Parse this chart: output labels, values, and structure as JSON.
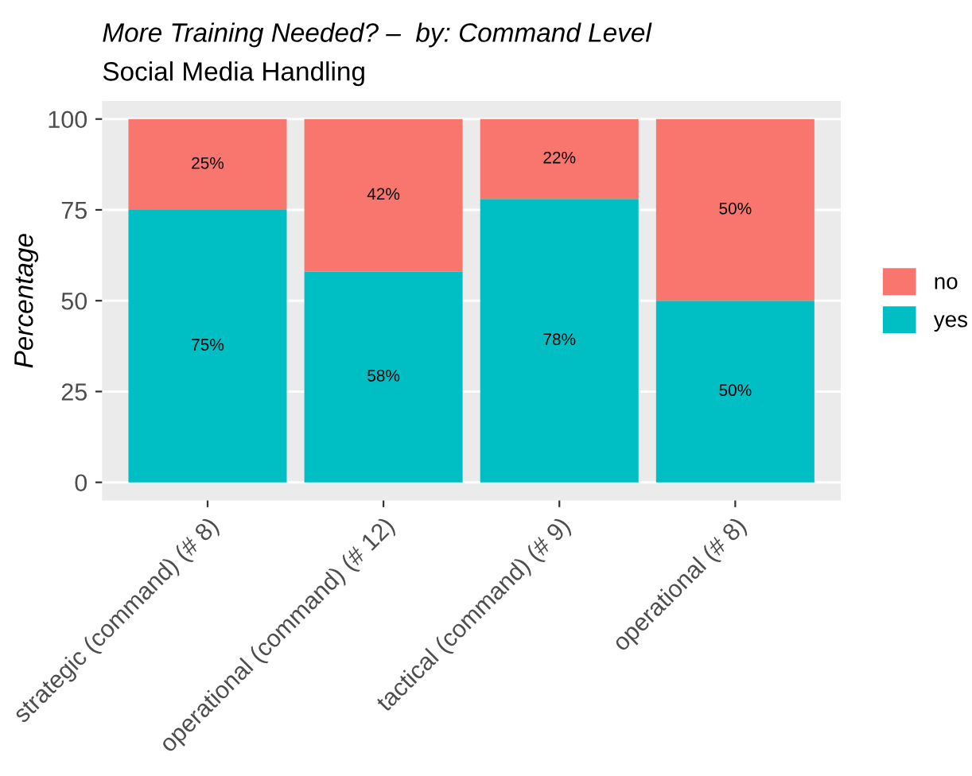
{
  "chart_data": {
    "type": "bar",
    "title": "More Training Needed? –  by: Command Level",
    "subtitle": "Social Media Handling",
    "ylabel": "Percentage",
    "categories": [
      "strategic (command) (# 8)",
      "operational (command) (# 12)",
      "tactical (command) (# 9)",
      "operational (# 8)"
    ],
    "stacked": true,
    "series": [
      {
        "name": "yes",
        "color": "#00bfc4",
        "values": [
          75,
          58,
          78,
          50
        ],
        "value_labels": [
          "75%",
          "58%",
          "78%",
          "50%"
        ]
      },
      {
        "name": "no",
        "color": "#f8766d",
        "values": [
          25,
          42,
          22,
          50
        ],
        "value_labels": [
          "25%",
          "42%",
          "22%",
          "50%"
        ]
      }
    ],
    "ylim": [
      -5,
      105
    ],
    "yticks": [
      0,
      25,
      50,
      75,
      100
    ],
    "grid": "y",
    "legend": "right"
  }
}
